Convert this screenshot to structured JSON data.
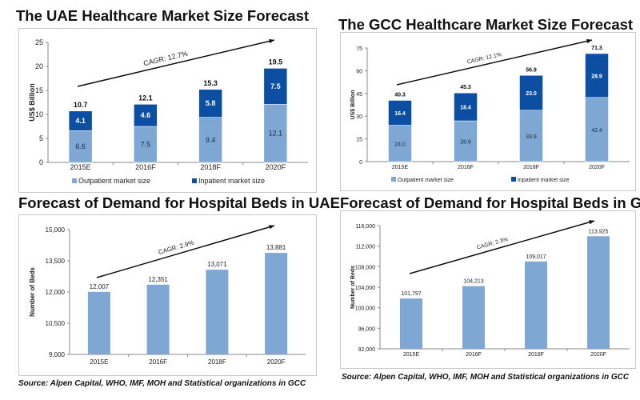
{
  "colors": {
    "outpatient": "#7fa7d3",
    "inpatient": "#0b4ea2",
    "beds": "#7fa7d3"
  },
  "source_left": "Source:  Alpen Capital, WHO, IMF, MOH and Statistical organizations in GCC",
  "source_right": "Source:  Alpen Capital, WHO, IMF, MOH and Statistical organizations in GCC",
  "chart_data": [
    {
      "type": "bar",
      "stacked": true,
      "title": "The UAE Healthcare Market Size Forecast",
      "ylabel": "US$ Billion",
      "ylim": [
        0,
        25
      ],
      "yticks": [
        "0",
        "5",
        "10",
        "15",
        "20",
        "25"
      ],
      "categories": [
        "2015E",
        "2016F",
        "2018F",
        "2020F"
      ],
      "series": [
        {
          "name": "Outpatient market size",
          "values": [
            6.6,
            7.5,
            9.4,
            12.1
          ],
          "labels": [
            "6.6",
            "7.5",
            "9.4",
            "12.1"
          ]
        },
        {
          "name": "Inpatient market size",
          "values": [
            4.1,
            4.6,
            5.8,
            7.5
          ],
          "labels": [
            "4.1",
            "4.6",
            "5.8",
            "7.5"
          ]
        }
      ],
      "totals": [
        "10.7",
        "12.1",
        "15.3",
        "19.5"
      ],
      "annotation": "CAGR: 12.7%",
      "legend": "bottom"
    },
    {
      "type": "bar",
      "stacked": true,
      "title": "The GCC Healthcare Market Size Forecast",
      "ylabel": "US$ Billion",
      "ylim": [
        0,
        75
      ],
      "yticks": [
        "0",
        "15",
        "30",
        "45",
        "60",
        "75"
      ],
      "categories": [
        "2015E",
        "2016F",
        "2018F",
        "2020F"
      ],
      "series": [
        {
          "name": "Outpatient market size",
          "values": [
            24.0,
            26.9,
            33.9,
            42.4
          ],
          "labels": [
            "24.0",
            "26.9",
            "33.9",
            "42.4"
          ]
        },
        {
          "name": "Inpatient market size",
          "values": [
            16.4,
            18.4,
            23.0,
            28.9
          ],
          "labels": [
            "16.4",
            "18.4",
            "23.0",
            "28.9"
          ]
        }
      ],
      "totals": [
        "40.3",
        "45.3",
        "56.9",
        "71.3"
      ],
      "annotation": "CAGR: 12.1%",
      "legend": "bottom"
    },
    {
      "type": "bar",
      "title": "Forecast of Demand for Hospital Beds in UAE",
      "ylabel": "Number of Beds",
      "ylim": [
        9000,
        15000
      ],
      "yticks": [
        "9,000",
        "10,500",
        "12,000",
        "13,500",
        "15,000"
      ],
      "categories": [
        "2015E",
        "2016F",
        "2018F",
        "2020F"
      ],
      "values": [
        12007,
        12351,
        13071,
        13881
      ],
      "labels": [
        "12,007",
        "12,351",
        "13,071",
        "13,881"
      ],
      "annotation": "CAGR: 2.9%"
    },
    {
      "type": "bar",
      "title": "Forecast of Demand for Hospital Beds in GCC",
      "ylabel": "Number of Beds",
      "ylim": [
        92000,
        116000
      ],
      "yticks": [
        "92,000",
        "96,000",
        "100,000",
        "104,000",
        "108,000",
        "112,000",
        "116,000"
      ],
      "categories": [
        "2015E",
        "2016F",
        "2018F",
        "2020F"
      ],
      "values": [
        101797,
        104213,
        109017,
        113925
      ],
      "labels": [
        "101,797",
        "104,213",
        "109,017",
        "113,925"
      ],
      "annotation": "CAGR: 2.3%"
    }
  ]
}
